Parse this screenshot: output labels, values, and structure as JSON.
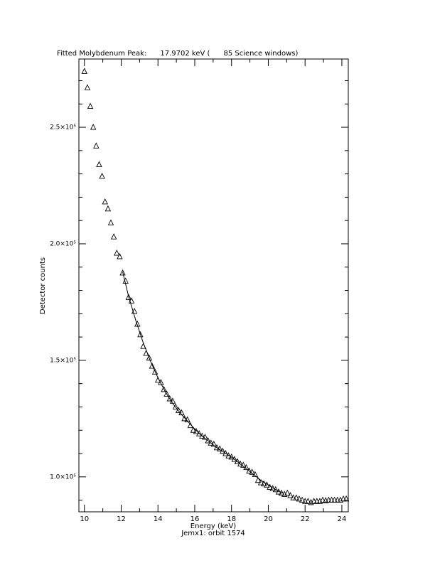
{
  "chart_data": {
    "type": "scatter",
    "title": "Fitted Molybdenum Peak:      17.9702 keV (      85 Science windows)",
    "x_label": "Energy (keV)",
    "y_label": "Detector counts",
    "caption": "Jemx1: orbit 1574",
    "xlim": [
      9.7,
      24.35
    ],
    "ylim": [
      85000,
      279300
    ],
    "xticks": [
      10,
      12,
      14,
      16,
      18,
      20,
      22,
      24
    ],
    "yticks": [
      {
        "value": 100000,
        "label": "1.0×10⁵"
      },
      {
        "value": 150000,
        "label": "1.5×10⁵"
      },
      {
        "value": 200000,
        "label": "2.0×10⁵"
      },
      {
        "value": 250000,
        "label": "2.5×10⁵"
      }
    ],
    "xminorticks": [
      11,
      13,
      15,
      17,
      19,
      21,
      23
    ],
    "yminorticks": [
      90000,
      110000,
      120000,
      130000,
      140000,
      160000,
      170000,
      180000,
      190000,
      210000,
      220000,
      230000,
      240000,
      260000,
      270000
    ],
    "color": "#000000",
    "series": [
      {
        "marker": "triangle",
        "x": [
          10.0,
          10.16,
          10.32,
          10.48,
          10.64,
          10.8,
          10.96,
          11.12,
          11.28,
          11.44,
          11.6,
          11.76,
          11.92,
          12.08,
          12.24,
          12.4,
          12.56,
          12.72,
          12.88,
          13.04,
          13.2,
          13.36,
          13.52,
          13.68,
          13.84,
          14.0,
          14.16,
          14.32,
          14.48,
          14.64,
          14.8,
          14.96,
          15.12,
          15.28,
          15.44,
          15.6,
          15.76,
          15.92,
          16.08,
          16.24,
          16.4,
          16.56,
          16.72,
          16.88,
          17.04,
          17.2,
          17.36,
          17.52,
          17.68,
          17.84,
          18.0,
          18.16,
          18.32,
          18.48,
          18.64,
          18.8,
          18.96,
          19.12,
          19.28,
          19.44,
          19.6,
          19.76,
          19.92,
          20.08,
          20.24,
          20.4,
          20.56,
          20.72,
          20.88,
          21.04,
          21.2,
          21.36,
          21.52,
          21.68,
          21.84,
          22.0,
          22.16,
          22.32,
          22.48,
          22.64,
          22.8,
          22.96,
          23.12,
          23.28,
          23.44,
          23.6,
          23.76,
          23.92,
          24.08,
          24.24
        ],
        "values": [
          274000,
          267000,
          259000,
          250000,
          242000,
          234000,
          229000,
          218000,
          215000,
          209000,
          203000,
          196000,
          194500,
          187500,
          184000,
          177000,
          175500,
          171000,
          165500,
          161000,
          156000,
          153000,
          151000,
          147500,
          145000,
          141500,
          140500,
          137500,
          135500,
          133500,
          132500,
          130000,
          128500,
          127500,
          125000,
          124500,
          122000,
          120000,
          119500,
          118500,
          117500,
          117000,
          115500,
          114500,
          114000,
          112500,
          112000,
          111000,
          110000,
          109000,
          108500,
          107500,
          106500,
          105500,
          105000,
          104000,
          102500,
          102000,
          101000,
          98500,
          97500,
          97000,
          96500,
          95500,
          95000,
          94500,
          93500,
          93000,
          92500,
          93000,
          92000,
          91000,
          91000,
          90500,
          90000,
          89500,
          89500,
          89000,
          89500,
          89500,
          89500,
          90000,
          89800,
          90000,
          90000,
          90000,
          90000,
          90000,
          90500,
          90500
        ]
      },
      {
        "marker": "line",
        "x": [
          12.08,
          12.4,
          12.8,
          13.2,
          13.6,
          14.0,
          14.4,
          14.8,
          15.2,
          15.6,
          16.0,
          16.4,
          16.8,
          17.2,
          17.6,
          18.0,
          18.4,
          18.8,
          19.2,
          19.6,
          20.0,
          20.4,
          20.8
        ],
        "values": [
          188000,
          177500,
          167000,
          157500,
          149500,
          142500,
          136500,
          131500,
          127500,
          124000,
          120500,
          117500,
          115000,
          112500,
          110500,
          108500,
          106000,
          103500,
          101000,
          98500,
          96500,
          94500,
          93000
        ]
      }
    ]
  }
}
